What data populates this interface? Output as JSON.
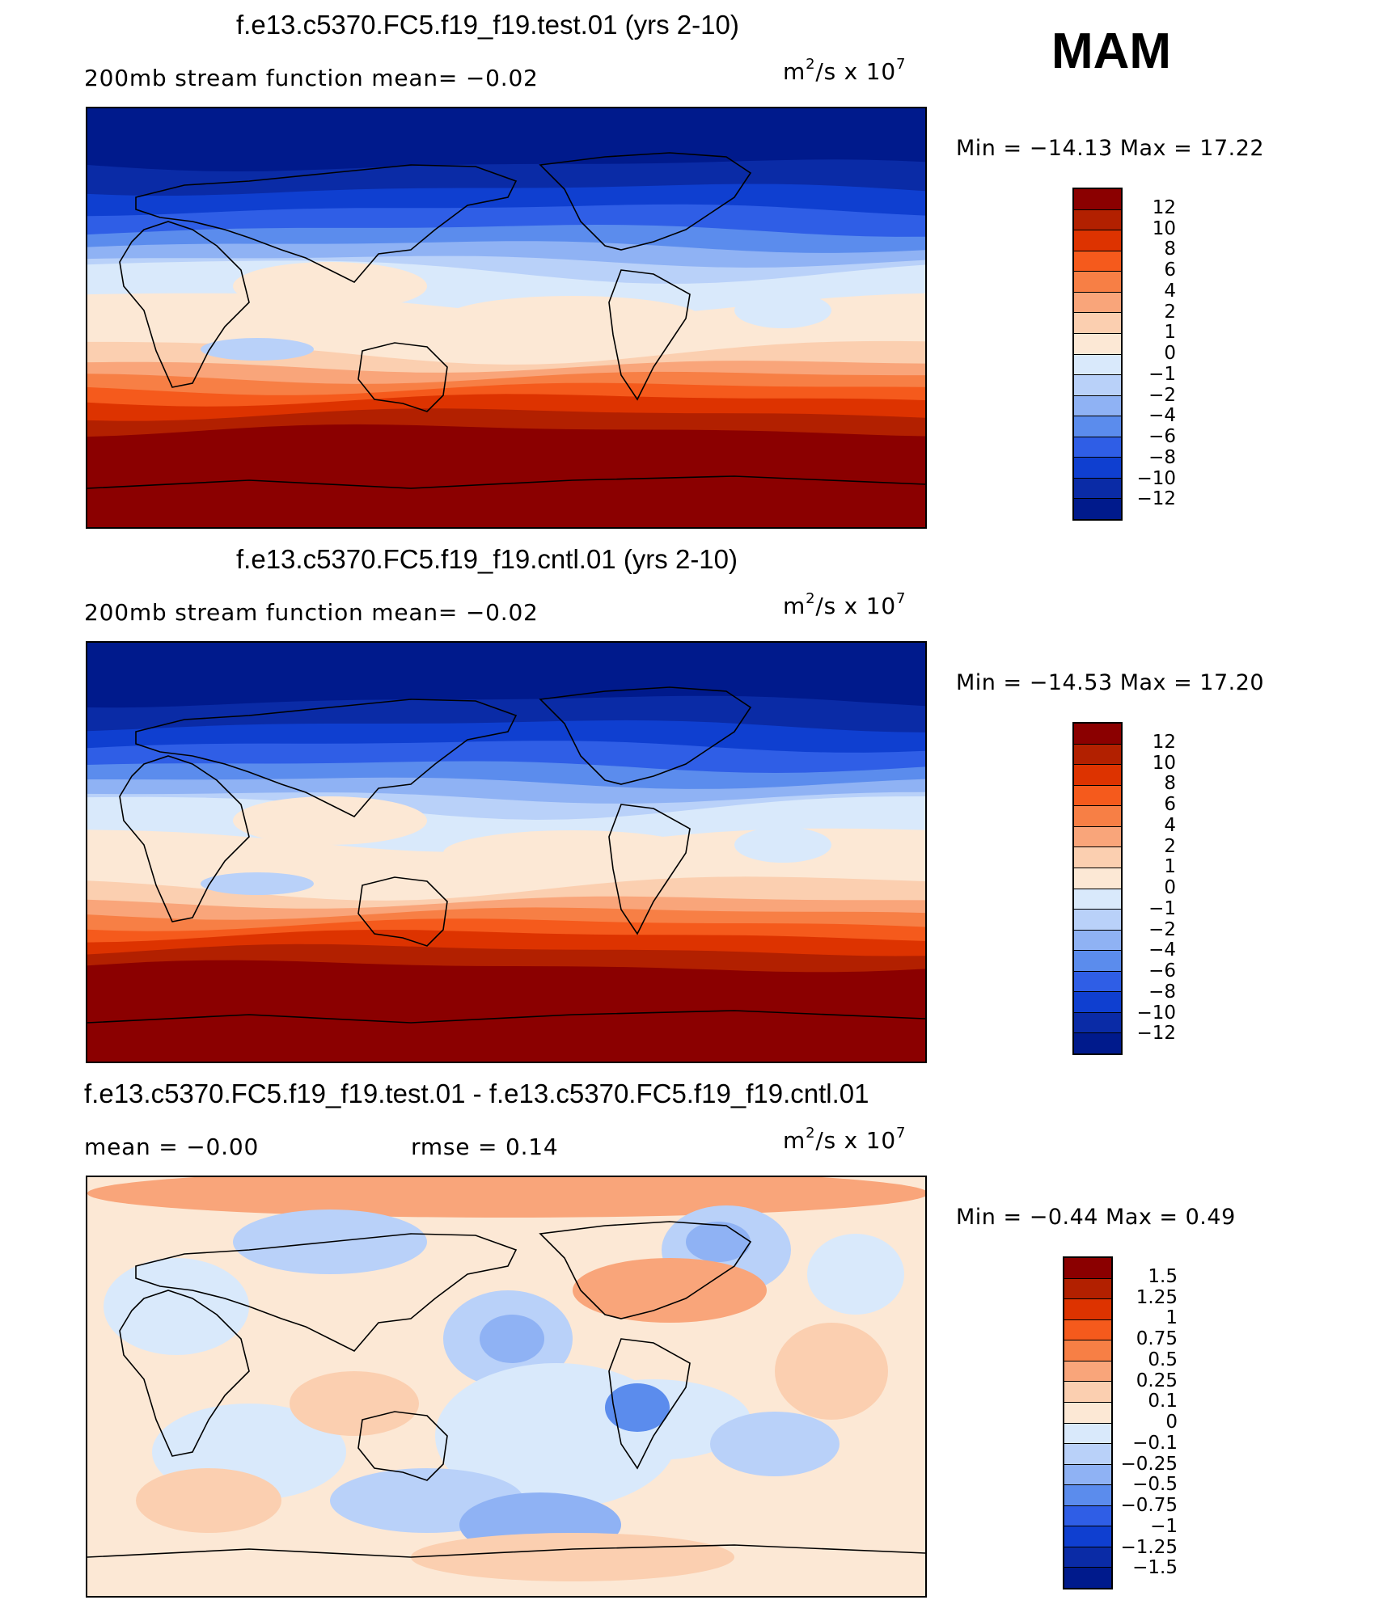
{
  "season": "MAM",
  "units_base": "m",
  "units_exp": "2",
  "units_mid": "/s  x  10",
  "units_exp2": "7",
  "panels": [
    {
      "title": "f.e13.c5370.FC5.f19_f19.test.01 (yrs 2-10)",
      "subtitle": "200mb  stream  function    mean=   −0.02",
      "minmax": "Min  =  −14.13  Max  =    17.22"
    },
    {
      "title": "f.e13.c5370.FC5.f19_f19.cntl.01 (yrs 2-10)",
      "subtitle": "200mb  stream  function    mean=   −0.02",
      "minmax": "Min  =  −14.53  Max  =    17.20"
    },
    {
      "title": "f.e13.c5370.FC5.f19_f19.test.01 - f.e13.c5370.FC5.f19_f19.cntl.01",
      "subtitle_left": "mean  =     −0.00",
      "subtitle_mid": "rmse  =     0.14",
      "minmax": "Min  =     −0.44  Max  =      0.49"
    }
  ],
  "colorbar_main": {
    "labels": [
      "12",
      "10",
      "8",
      "6",
      "4",
      "2",
      "1",
      "0",
      "−1",
      "−2",
      "−4",
      "−6",
      "−8",
      "−10",
      "−12"
    ],
    "colors": [
      "#8b0000",
      "#b22000",
      "#dd3300",
      "#f55a1c",
      "#f77f45",
      "#f9a57a",
      "#fbcfb0",
      "#fce8d5",
      "#d9e9fb",
      "#b9d1f9",
      "#8fb2f4",
      "#5b8ced",
      "#2f5ee6",
      "#0f3fd0",
      "#0a2ba6",
      "#001a8c"
    ]
  },
  "colorbar_diff": {
    "labels": [
      "1.5",
      "1.25",
      "1",
      "0.75",
      "0.5",
      "0.25",
      "0.1",
      "0",
      "−0.1",
      "−0.25",
      "−0.5",
      "−0.75",
      "−1",
      "−1.25",
      "−1.5"
    ],
    "colors": [
      "#8b0000",
      "#b22000",
      "#dd3300",
      "#f55a1c",
      "#f77f45",
      "#f9a57a",
      "#fbcfb0",
      "#fce8d5",
      "#d9e9fb",
      "#b9d1f9",
      "#8fb2f4",
      "#5b8ced",
      "#2f5ee6",
      "#0f3fd0",
      "#0a2ba6",
      "#001a8c"
    ]
  }
}
